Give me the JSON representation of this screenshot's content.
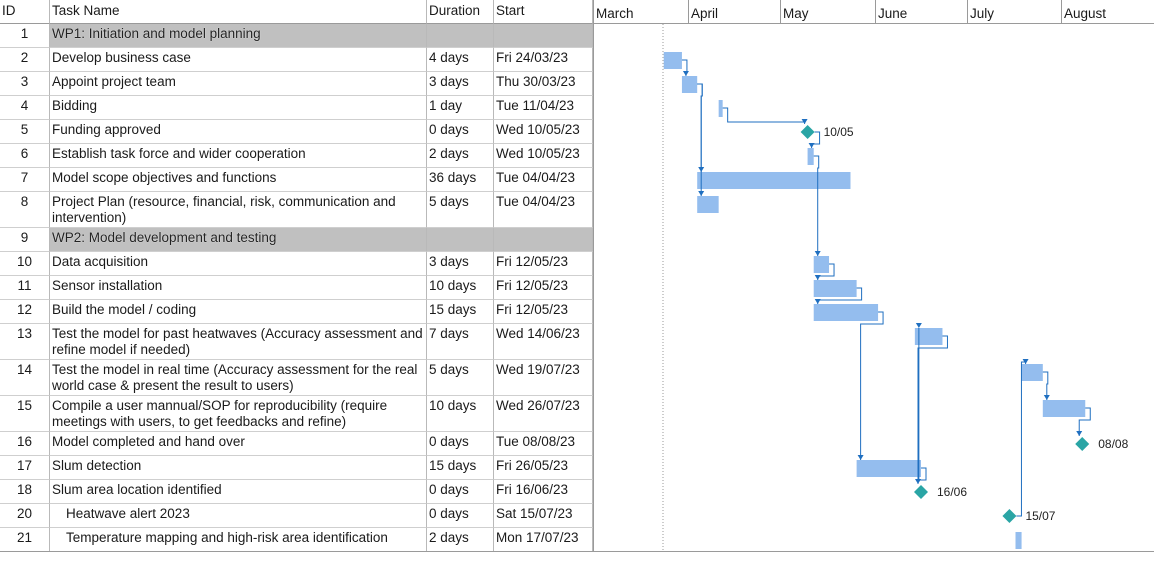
{
  "columns": {
    "id": "ID",
    "name": "Task Name",
    "duration": "Duration",
    "start": "Start"
  },
  "months": [
    "March",
    "April",
    "May",
    "June",
    "July",
    "August"
  ],
  "tasks": [
    {
      "id": "1",
      "name": "WP1: Initiation and model planning",
      "duration": "",
      "start": "",
      "type": "summary"
    },
    {
      "id": "2",
      "name": "Develop business case",
      "duration": "4 days",
      "start": "Fri 24/03/23",
      "type": "task"
    },
    {
      "id": "3",
      "name": "Appoint project team",
      "duration": "3 days",
      "start": "Thu 30/03/23",
      "type": "task"
    },
    {
      "id": "4",
      "name": "Bidding",
      "duration": "1 day",
      "start": "Tue 11/04/23",
      "type": "task"
    },
    {
      "id": "5",
      "name": "Funding approved",
      "duration": "0 days",
      "start": "Wed 10/05/23",
      "type": "milestone",
      "milestone_label": "10/05"
    },
    {
      "id": "6",
      "name": "Establish task force and wider cooperation",
      "duration": "2 days",
      "start": "Wed 10/05/23",
      "type": "task"
    },
    {
      "id": "7",
      "name": "Model scope objectives and functions",
      "duration": "36 days",
      "start": "Tue 04/04/23",
      "type": "task"
    },
    {
      "id": "8",
      "name": "Project Plan (resource, financial, risk, communication and intervention)",
      "duration": "5 days",
      "start": "Tue 04/04/23",
      "type": "task"
    },
    {
      "id": "9",
      "name": "WP2: Model development and testing",
      "duration": "",
      "start": "",
      "type": "summary"
    },
    {
      "id": "10",
      "name": "Data acquisition",
      "duration": "3 days",
      "start": "Fri 12/05/23",
      "type": "task"
    },
    {
      "id": "11",
      "name": "Sensor installation",
      "duration": "10 days",
      "start": "Fri 12/05/23",
      "type": "task"
    },
    {
      "id": "12",
      "name": "Build the model / coding",
      "duration": "15 days",
      "start": "Fri 12/05/23",
      "type": "task"
    },
    {
      "id": "13",
      "name": "Test the model for past heatwaves (Accuracy assessment and refine model if needed)",
      "duration": "7 days",
      "start": "Wed 14/06/23",
      "type": "task"
    },
    {
      "id": "14",
      "name": "Test the model in real time (Accuracy assessment for the real world case & present the result to users)",
      "duration": "5 days",
      "start": "Wed 19/07/23",
      "type": "task"
    },
    {
      "id": "15",
      "name": "Compile a user mannual/SOP for reproducibility (require meetings with users, to get feedbacks and refine)",
      "duration": "10 days",
      "start": "Wed 26/07/23",
      "type": "task"
    },
    {
      "id": "16",
      "name": "Model completed and hand over",
      "duration": "0 days",
      "start": "Tue 08/08/23",
      "type": "milestone",
      "milestone_label": "08/08"
    },
    {
      "id": "17",
      "name": "Slum detection",
      "duration": "15 days",
      "start": "Fri 26/05/23",
      "type": "task"
    },
    {
      "id": "18",
      "name": "Slum area location identified",
      "duration": "0 days",
      "start": "Fri 16/06/23",
      "type": "milestone",
      "milestone_label": "16/06"
    },
    {
      "id": "20",
      "name": "Heatwave alert 2023",
      "duration": "0 days",
      "start": "Sat 15/07/23",
      "type": "milestone",
      "milestone_label": "15/07",
      "indent": true
    },
    {
      "id": "21",
      "name": "Temperature mapping and high-risk area identification",
      "duration": "2 days",
      "start": "Mon 17/07/23",
      "type": "task",
      "indent": true
    }
  ],
  "colors": {
    "bar": "#94bdee",
    "bar_edge": "#7aa9e0",
    "milestone": "#2aa5a5",
    "link": "#1f6fc0",
    "summary_fill": "#c0c0c0",
    "grid": "#d0d0d0"
  }
}
